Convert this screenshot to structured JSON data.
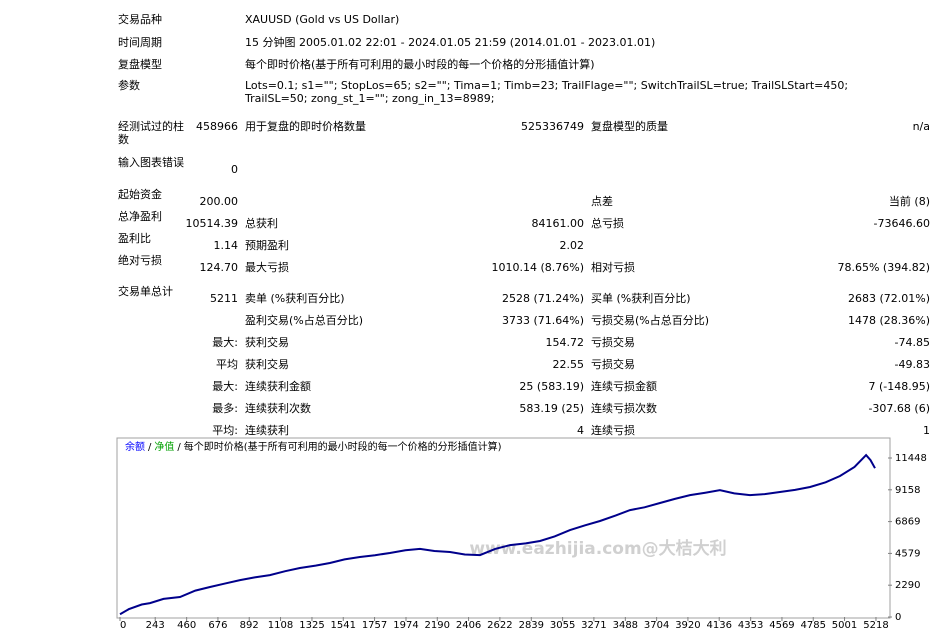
{
  "header": {
    "rows": [
      [
        "交易品种",
        "XAUUSD (Gold vs US Dollar)"
      ],
      [
        "时间周期",
        "15 分钟图 2005.01.02 22:01 - 2024.01.05 21:59 (2014.01.01 - 2023.01.01)"
      ],
      [
        "复盘模型",
        "每个即时价格(基于所有可利用的最小时段的每一个价格的分形插值计算)"
      ],
      [
        "参数",
        "Lots=0.1; s1=\"\"; StopLos=65; s2=\"\"; Tima=1; Timb=23; TrailFlage=\"\"; SwitchTrailSL=true; TrailSLStart=450; TrailSL=50; zong_st_1=\"\"; zong_in_13=8989;"
      ]
    ]
  },
  "stats": {
    "rows": [
      [
        "经测试过的柱数",
        "458966",
        "用于复盘的即时价格数量",
        "525336749",
        "复盘模型的质量",
        "n/a"
      ],
      [
        "输入图表错误",
        "0",
        null,
        null,
        null,
        null
      ],
      [
        "起始资金",
        "200.00",
        null,
        null,
        "点差",
        "当前 (8)"
      ],
      [
        "总净盈利",
        "10514.39",
        "总获利",
        "84161.00",
        "总亏损",
        "-73646.60"
      ],
      [
        "盈利比",
        "1.14",
        "预期盈利",
        "2.02",
        null,
        null
      ],
      [
        "绝对亏损",
        "124.70",
        "最大亏损",
        "1010.14 (8.76%)",
        "相对亏损",
        "78.65% (394.82)"
      ],
      [
        "交易单总计",
        "5211",
        "卖单 (%获利百分比)",
        "2528 (71.24%)",
        "买单 (%获利百分比)",
        "2683 (72.01%)"
      ],
      [
        null,
        null,
        "盈利交易(%占总百分比)",
        "3733 (71.64%)",
        "亏损交易(%占总百分比)",
        "1478 (28.36%)"
      ],
      [
        null,
        "最大:",
        "获利交易",
        "154.72",
        "亏损交易",
        "-74.85"
      ],
      [
        null,
        "平均",
        "获利交易",
        "22.55",
        "亏损交易",
        "-49.83"
      ],
      [
        null,
        "最大:",
        "连续获利金额",
        "25 (583.19)",
        "连续亏损金额",
        "7 (-148.95)"
      ],
      [
        null,
        "最多:",
        "连续获利次数",
        "583.19 (25)",
        "连续亏损次数",
        "-307.68 (6)"
      ],
      [
        null,
        "平均:",
        "连续获利",
        "4",
        "连续亏损",
        "1"
      ]
    ]
  },
  "chart_data": {
    "type": "line",
    "subtitle": "每个即时价格(基于所有可利用的最小时段的每一个价格的分形插值计算)",
    "equity_label": "净值",
    "equity_color": "#00a000",
    "legend_separator": "/",
    "watermark": "www.eazhijia.com@大桔大利",
    "x": [
      0,
      60,
      150,
      207,
      300,
      414,
      520,
      621,
      720,
      828,
      930,
      1035,
      1140,
      1242,
      1350,
      1449,
      1550,
      1656,
      1760,
      1863,
      1970,
      2071,
      2170,
      2278,
      2380,
      2485,
      2590,
      2692,
      2800,
      2899,
      3000,
      3106,
      3210,
      3313,
      3420,
      3520,
      3620,
      3727,
      3830,
      3934,
      4040,
      4141,
      4240,
      4348,
      4450,
      4555,
      4660,
      4763,
      4870,
      4970,
      5070,
      5150,
      5180,
      5211
    ],
    "series": [
      {
        "name": "余额",
        "color": "#00008b",
        "legend_color": "#0000ff",
        "values": [
          200,
          560,
          900,
          1000,
          1300,
          1440,
          1900,
          2160,
          2400,
          2660,
          2850,
          3020,
          3300,
          3530,
          3700,
          3890,
          4150,
          4320,
          4450,
          4610,
          4800,
          4900,
          4750,
          4680,
          4500,
          4460,
          4900,
          5180,
          5300,
          5470,
          5800,
          6260,
          6600,
          6910,
          7300,
          7700,
          7900,
          8210,
          8500,
          8780,
          8950,
          9140,
          8900,
          8780,
          8850,
          9000,
          9150,
          9360,
          9700,
          10150,
          10800,
          11660,
          11300,
          10714
        ]
      }
    ],
    "xlim": [
      0,
      5301
    ],
    "ylim": [
      0,
      12744
    ],
    "xticks": [
      0,
      243,
      460,
      676,
      892,
      1108,
      1325,
      1541,
      1757,
      1974,
      2190,
      2406,
      2622,
      2839,
      3055,
      3271,
      3488,
      3704,
      3920,
      4136,
      4353,
      4569,
      4785,
      5001,
      5218
    ],
    "yticks": [
      0,
      2290,
      4579,
      6869,
      9158,
      11448
    ]
  }
}
